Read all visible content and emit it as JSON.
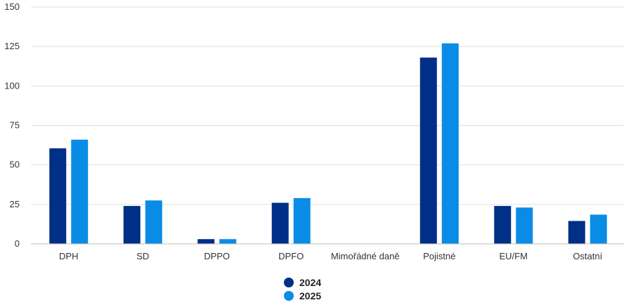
{
  "chart_data": {
    "type": "bar",
    "categories": [
      "DPH",
      "SD",
      "DPPO",
      "DPFO",
      "Mimořádné daně",
      "Pojistné",
      "EU/FM",
      "Ostatní"
    ],
    "series": [
      {
        "name": "2024",
        "color": "#002f87",
        "values": [
          60.5,
          24,
          3,
          26,
          0,
          118,
          24,
          14.5
        ]
      },
      {
        "name": "2025",
        "color": "#0a8ce6",
        "values": [
          66,
          27.5,
          3,
          29,
          0,
          127,
          23,
          18.5
        ]
      }
    ],
    "ylim": [
      0,
      150
    ],
    "yticks": [
      0,
      25,
      50,
      75,
      100,
      125,
      150
    ],
    "grid": true,
    "legend_position": "bottom-center"
  }
}
